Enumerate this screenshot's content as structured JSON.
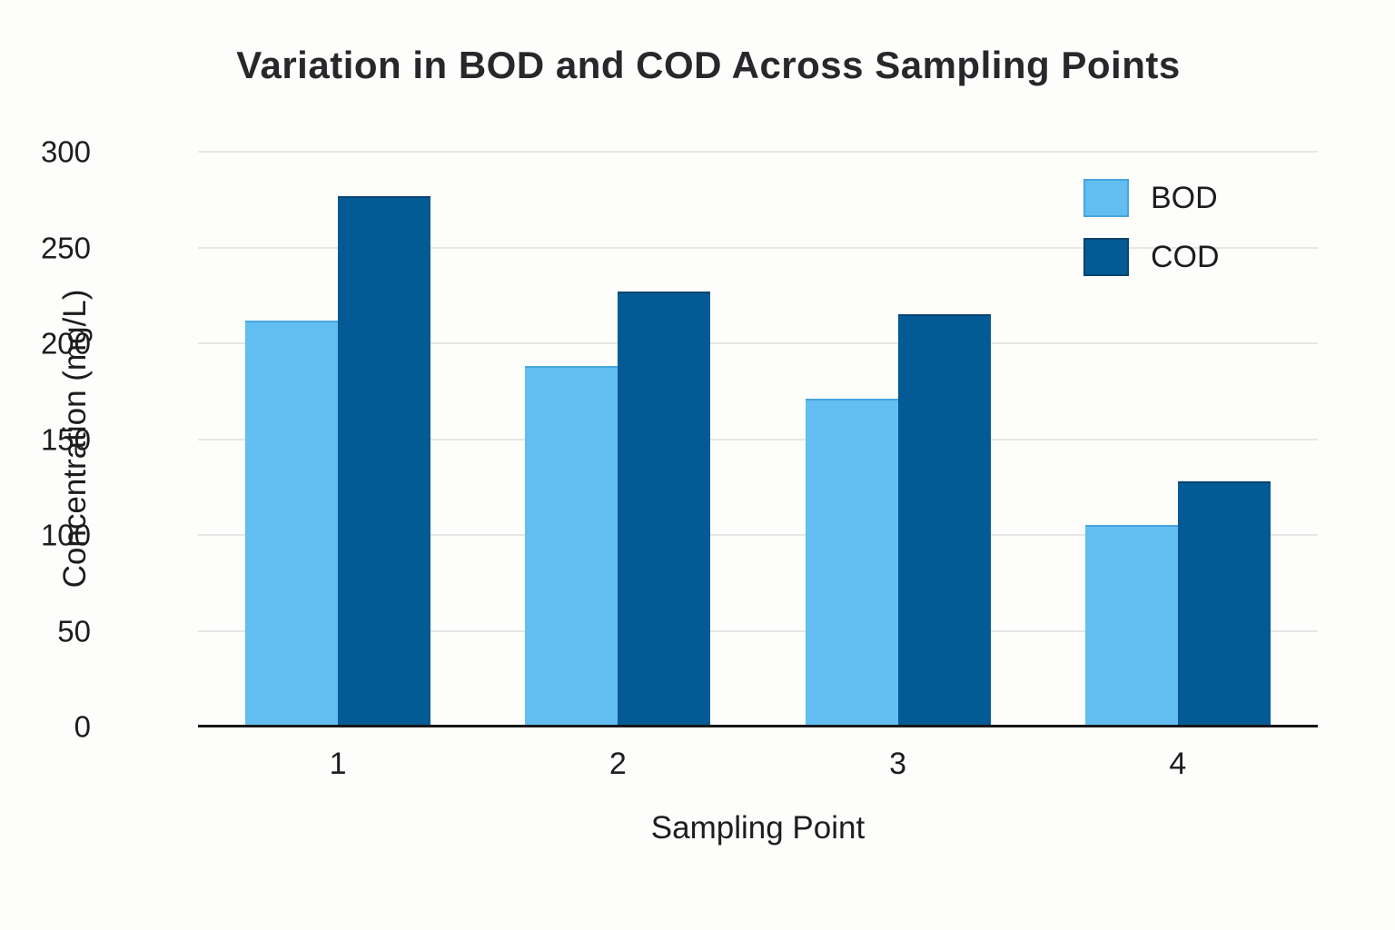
{
  "chart_data": {
    "type": "bar",
    "title": "Variation in BOD and COD Across Sampling Points",
    "xlabel": "Sampling Point",
    "ylabel": "Concentration (mg/L)",
    "categories": [
      "1",
      "2",
      "3",
      "4"
    ],
    "series": [
      {
        "name": "BOD",
        "color": "#62BEF0",
        "edge_color": "#47A5DE",
        "values": [
          212,
          188,
          171,
          105
        ]
      },
      {
        "name": "COD",
        "color": "#045A94",
        "edge_color": "#0A4470",
        "values": [
          277,
          227,
          215,
          128
        ]
      }
    ],
    "ylim": [
      0,
      300
    ],
    "yticks": [
      0,
      50,
      100,
      150,
      200,
      250,
      300
    ],
    "grid": true,
    "gridline_color": "#e6e6e6",
    "axis_line_color": "#17171a",
    "legend_position": "top-right",
    "legend_entries": [
      "BOD",
      "COD"
    ]
  }
}
